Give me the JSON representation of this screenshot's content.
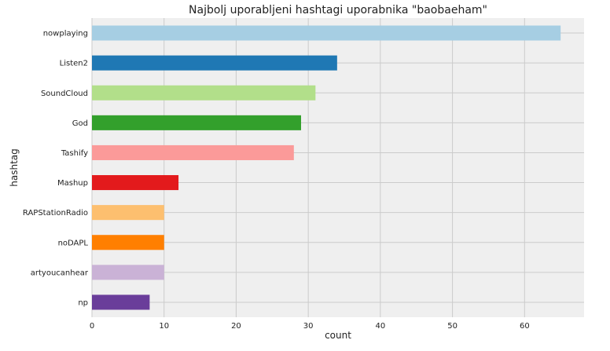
{
  "chart_data": {
    "type": "bar",
    "orientation": "horizontal",
    "title": "Najbolj uporabljeni hashtagi uporabnika \"baobaeham\"",
    "xlabel": "count",
    "ylabel": "hashtag",
    "xlim": [
      0,
      68.25
    ],
    "xticks": [
      "0",
      "10",
      "20",
      "30",
      "40",
      "50",
      "60"
    ],
    "grid": true,
    "categories": [
      "nowplaying",
      "Listen2",
      "SoundCloud",
      "God",
      "Tashify",
      "Mashup",
      "RAPStationRadio",
      "noDAPL",
      "artyoucanhear",
      "np"
    ],
    "values": [
      65,
      34,
      31,
      29,
      28,
      12,
      10,
      10,
      10,
      8
    ],
    "colors": [
      "#a6cee3",
      "#1f78b4",
      "#b2df8a",
      "#33a02c",
      "#fb9a99",
      "#e31a1c",
      "#fdbf6f",
      "#ff7f00",
      "#cab2d6",
      "#6a3d9a"
    ],
    "plot_background": "#efefef",
    "grid_color": "#cbcbcb"
  }
}
